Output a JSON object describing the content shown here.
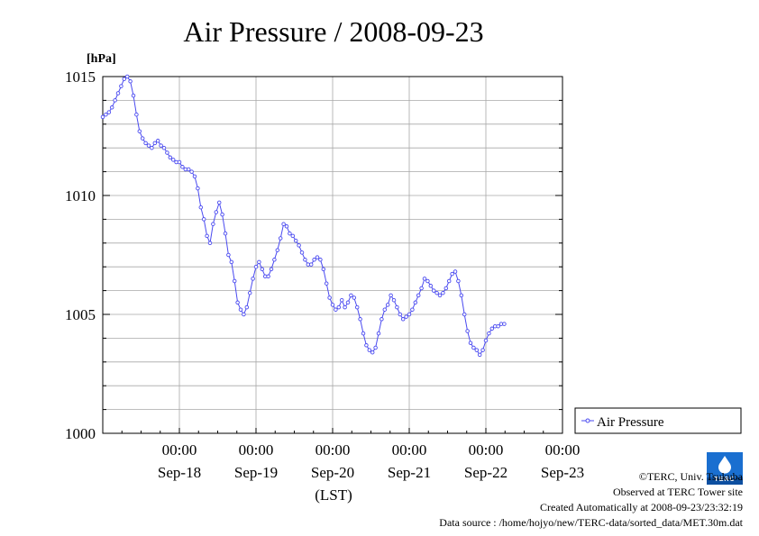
{
  "chart_data": {
    "type": "line",
    "title": "Air Pressure / 2008-09-23",
    "ylabel": "[hPa]",
    "xlabel": "(LST)",
    "ylim": [
      1000,
      1015
    ],
    "yticks": [
      "1000",
      "1005",
      "1010",
      "1015"
    ],
    "x_tick_time": "00:00",
    "x_tick_dates": [
      "Sep-18",
      "Sep-19",
      "Sep-20",
      "Sep-21",
      "Sep-22",
      "Sep-23"
    ],
    "xlim_days": [
      -1.0,
      5.0
    ],
    "legend": "Air Pressure",
    "legend_position": "right",
    "grid": true,
    "series": [
      {
        "name": "Air Pressure",
        "color": "#4a4af0",
        "points": [
          [
            -1.0,
            1013.3
          ],
          [
            -0.96,
            1013.4
          ],
          [
            -0.92,
            1013.5
          ],
          [
            -0.88,
            1013.7
          ],
          [
            -0.84,
            1014.0
          ],
          [
            -0.8,
            1014.3
          ],
          [
            -0.76,
            1014.6
          ],
          [
            -0.72,
            1014.9
          ],
          [
            -0.68,
            1015.0
          ],
          [
            -0.64,
            1014.8
          ],
          [
            -0.6,
            1014.2
          ],
          [
            -0.56,
            1013.4
          ],
          [
            -0.52,
            1012.7
          ],
          [
            -0.48,
            1012.4
          ],
          [
            -0.44,
            1012.2
          ],
          [
            -0.4,
            1012.1
          ],
          [
            -0.36,
            1012.0
          ],
          [
            -0.32,
            1012.2
          ],
          [
            -0.28,
            1012.3
          ],
          [
            -0.24,
            1012.1
          ],
          [
            -0.2,
            1012.0
          ],
          [
            -0.16,
            1011.8
          ],
          [
            -0.12,
            1011.6
          ],
          [
            -0.08,
            1011.5
          ],
          [
            -0.04,
            1011.4
          ],
          [
            0.0,
            1011.4
          ],
          [
            0.04,
            1011.2
          ],
          [
            0.08,
            1011.1
          ],
          [
            0.12,
            1011.1
          ],
          [
            0.16,
            1011.0
          ],
          [
            0.2,
            1010.8
          ],
          [
            0.24,
            1010.3
          ],
          [
            0.28,
            1009.5
          ],
          [
            0.32,
            1009.0
          ],
          [
            0.36,
            1008.3
          ],
          [
            0.4,
            1008.0
          ],
          [
            0.44,
            1008.8
          ],
          [
            0.48,
            1009.3
          ],
          [
            0.52,
            1009.7
          ],
          [
            0.56,
            1009.2
          ],
          [
            0.6,
            1008.4
          ],
          [
            0.64,
            1007.5
          ],
          [
            0.68,
            1007.2
          ],
          [
            0.72,
            1006.4
          ],
          [
            0.76,
            1005.5
          ],
          [
            0.8,
            1005.2
          ],
          [
            0.84,
            1005.0
          ],
          [
            0.88,
            1005.3
          ],
          [
            0.92,
            1005.9
          ],
          [
            0.96,
            1006.5
          ],
          [
            1.0,
            1007.0
          ],
          [
            1.04,
            1007.2
          ],
          [
            1.08,
            1006.9
          ],
          [
            1.12,
            1006.6
          ],
          [
            1.16,
            1006.6
          ],
          [
            1.2,
            1006.9
          ],
          [
            1.24,
            1007.3
          ],
          [
            1.28,
            1007.7
          ],
          [
            1.32,
            1008.2
          ],
          [
            1.36,
            1008.8
          ],
          [
            1.4,
            1008.7
          ],
          [
            1.44,
            1008.4
          ],
          [
            1.48,
            1008.3
          ],
          [
            1.52,
            1008.1
          ],
          [
            1.56,
            1007.9
          ],
          [
            1.6,
            1007.6
          ],
          [
            1.64,
            1007.3
          ],
          [
            1.68,
            1007.1
          ],
          [
            1.72,
            1007.1
          ],
          [
            1.76,
            1007.3
          ],
          [
            1.8,
            1007.4
          ],
          [
            1.84,
            1007.3
          ],
          [
            1.88,
            1006.9
          ],
          [
            1.92,
            1006.3
          ],
          [
            1.96,
            1005.7
          ],
          [
            2.0,
            1005.4
          ],
          [
            2.04,
            1005.2
          ],
          [
            2.08,
            1005.3
          ],
          [
            2.12,
            1005.6
          ],
          [
            2.16,
            1005.3
          ],
          [
            2.2,
            1005.5
          ],
          [
            2.24,
            1005.8
          ],
          [
            2.28,
            1005.7
          ],
          [
            2.32,
            1005.3
          ],
          [
            2.36,
            1004.8
          ],
          [
            2.4,
            1004.2
          ],
          [
            2.44,
            1003.7
          ],
          [
            2.48,
            1003.5
          ],
          [
            2.52,
            1003.4
          ],
          [
            2.56,
            1003.6
          ],
          [
            2.6,
            1004.2
          ],
          [
            2.64,
            1004.8
          ],
          [
            2.68,
            1005.2
          ],
          [
            2.72,
            1005.4
          ],
          [
            2.76,
            1005.8
          ],
          [
            2.8,
            1005.6
          ],
          [
            2.84,
            1005.3
          ],
          [
            2.88,
            1005.0
          ],
          [
            2.92,
            1004.8
          ],
          [
            2.96,
            1004.9
          ],
          [
            3.0,
            1005.0
          ],
          [
            3.04,
            1005.2
          ],
          [
            3.08,
            1005.5
          ],
          [
            3.12,
            1005.8
          ],
          [
            3.16,
            1006.1
          ],
          [
            3.2,
            1006.5
          ],
          [
            3.24,
            1006.4
          ],
          [
            3.28,
            1006.2
          ],
          [
            3.32,
            1006.0
          ],
          [
            3.36,
            1005.9
          ],
          [
            3.4,
            1005.8
          ],
          [
            3.44,
            1005.9
          ],
          [
            3.48,
            1006.1
          ],
          [
            3.52,
            1006.4
          ],
          [
            3.56,
            1006.7
          ],
          [
            3.6,
            1006.8
          ],
          [
            3.64,
            1006.4
          ],
          [
            3.68,
            1005.8
          ],
          [
            3.72,
            1005.0
          ],
          [
            3.76,
            1004.3
          ],
          [
            3.8,
            1003.8
          ],
          [
            3.84,
            1003.6
          ],
          [
            3.88,
            1003.5
          ],
          [
            3.92,
            1003.3
          ],
          [
            3.96,
            1003.5
          ],
          [
            4.0,
            1003.9
          ],
          [
            4.04,
            1004.2
          ],
          [
            4.08,
            1004.4
          ],
          [
            4.12,
            1004.5
          ],
          [
            4.16,
            1004.5
          ],
          [
            4.2,
            1004.6
          ],
          [
            4.24,
            1004.6
          ]
        ]
      }
    ]
  },
  "footer": {
    "copyright": "©TERC, Univ. Tsukuba",
    "observed": "Observed at TERC Tower site",
    "created": "Created Automatically at 2008-09-23/23:32:19",
    "source": "Data source : /home/hojyo/new/TERC-data/sorted_data/MET.30m.dat"
  },
  "logo_text": "TERC"
}
